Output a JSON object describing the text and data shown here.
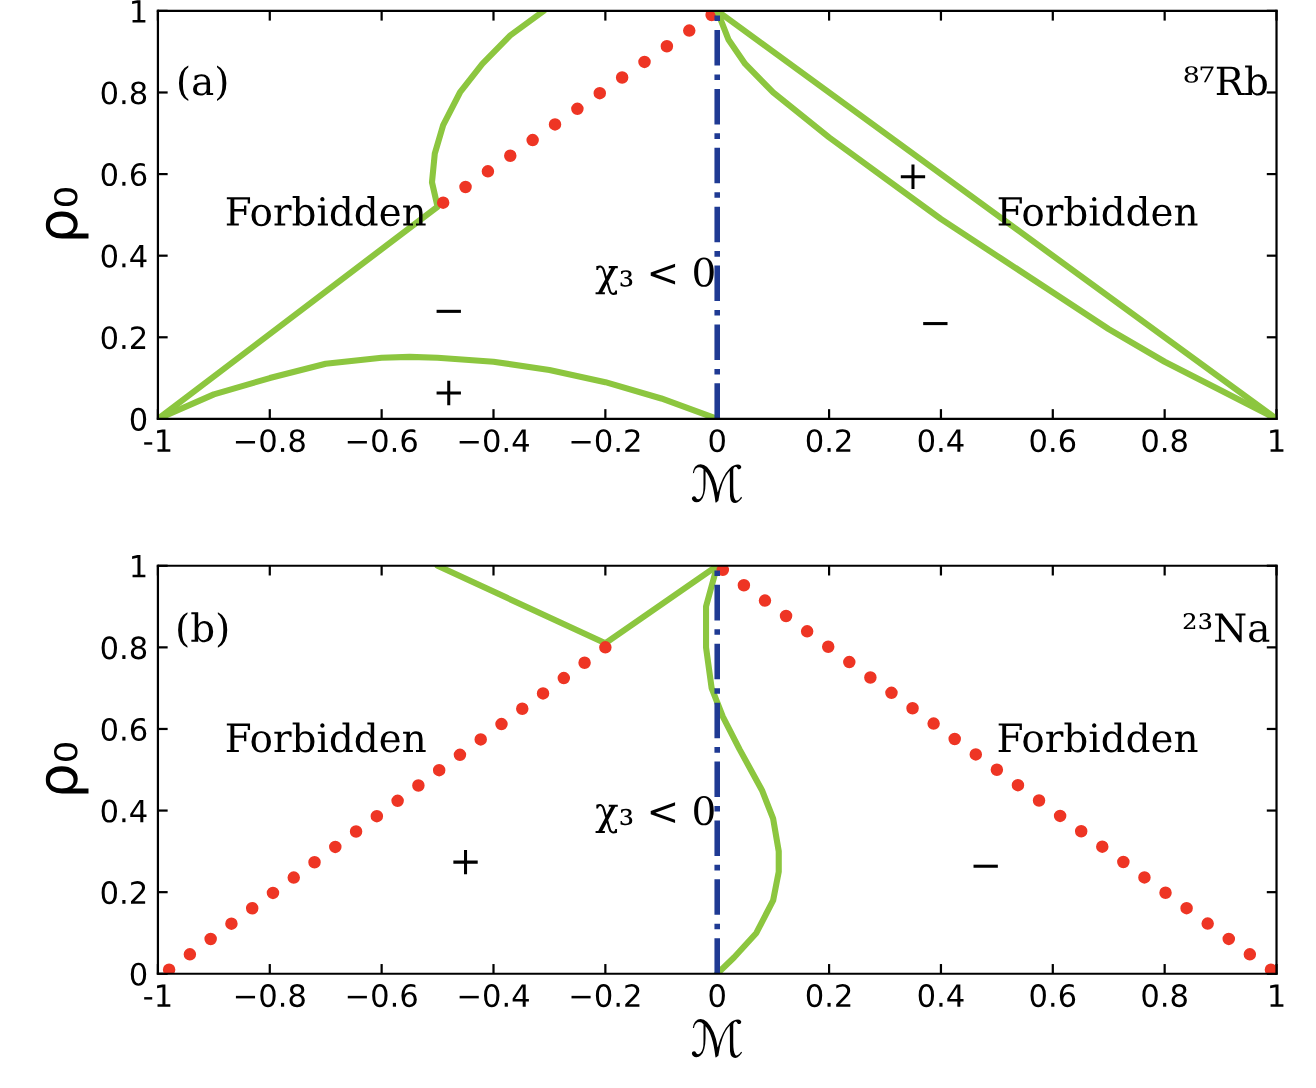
{
  "chart_data": [
    {
      "type": "line",
      "xlabel": "ℳ",
      "ylabel": "ρ₀",
      "xlim": [
        -1,
        1
      ],
      "ylim": [
        0,
        1
      ],
      "xticks": [
        -1,
        {
          "value": -0.8,
          "label": "−0.8"
        },
        {
          "value": -0.6,
          "label": "−0.6"
        },
        {
          "value": -0.4,
          "label": "−0.4"
        },
        {
          "value": -0.2,
          "label": "−0.2"
        },
        0,
        0.2,
        0.4,
        0.6,
        0.8,
        1
      ],
      "yticks": [
        0,
        0.2,
        0.4,
        0.6,
        0.8,
        1
      ],
      "grid": false,
      "legend": false,
      "marker": "none",
      "series": [
        {
          "color": "#8cc63f",
          "line_style": "solid",
          "x": [
            -1,
            -0.5,
            -0.51,
            -0.505,
            -0.49,
            -0.46,
            -0.42,
            -0.37,
            -0.31
          ],
          "values": [
            0,
            0.52,
            0.58,
            0.65,
            0.72,
            0.8,
            0.87,
            0.94,
            1.0
          ]
        },
        {
          "color": "#8cc63f",
          "line_style": "solid",
          "x": [
            -1,
            -0.9,
            -0.8,
            -0.7,
            -0.6,
            -0.55,
            -0.5,
            -0.4,
            -0.3,
            -0.2,
            -0.1,
            0
          ],
          "values": [
            0,
            0.06,
            0.1,
            0.135,
            0.15,
            0.152,
            0.15,
            0.14,
            0.12,
            0.09,
            0.05,
            0
          ]
        },
        {
          "color": "#ee3524",
          "line_style": "dotted",
          "x": [
            -0.49,
            -0.01
          ],
          "values": [
            0.53,
            0.99
          ]
        },
        {
          "color": "#8cc63f",
          "line_style": "solid",
          "x": [
            0,
            1
          ],
          "values": [
            1,
            0
          ]
        },
        {
          "color": "#8cc63f",
          "line_style": "solid",
          "x": [
            0,
            0.02,
            0.05,
            0.1,
            0.2,
            0.3,
            0.4,
            0.5,
            0.6,
            0.7,
            0.8,
            0.9,
            1
          ],
          "values": [
            1,
            0.93,
            0.87,
            0.8,
            0.69,
            0.59,
            0.49,
            0.4,
            0.31,
            0.22,
            0.14,
            0.07,
            0
          ]
        }
      ],
      "ref_lines": [
        {
          "axis": "x",
          "value": 0,
          "color": "#1f3a93",
          "line_style": "dashdot"
        }
      ],
      "annotations": [
        "(a)",
        "⁸⁷Rb",
        "Forbidden",
        "Forbidden",
        "χ₃ < 0",
        "−",
        "+",
        "+",
        "−"
      ]
    },
    {
      "type": "line",
      "xlabel": "ℳ",
      "ylabel": "ρ₀",
      "xlim": [
        -1,
        1
      ],
      "ylim": [
        0,
        1
      ],
      "xticks": [
        -1,
        {
          "value": -0.8,
          "label": "−0.8"
        },
        {
          "value": -0.6,
          "label": "−0.6"
        },
        {
          "value": -0.4,
          "label": "−0.4"
        },
        {
          "value": -0.2,
          "label": "−0.2"
        },
        0,
        0.2,
        0.4,
        0.6,
        0.8,
        1
      ],
      "yticks": [
        0,
        0.2,
        0.4,
        0.6,
        0.8,
        1
      ],
      "grid": false,
      "legend": false,
      "marker": "none",
      "series": [
        {
          "color": "#8cc63f",
          "line_style": "solid",
          "x": [
            -0.5,
            -0.2,
            0
          ],
          "values": [
            1,
            0.81,
            1
          ]
        },
        {
          "color": "#8cc63f",
          "line_style": "solid",
          "x": [
            0,
            -0.02,
            -0.02,
            -0.01,
            0.01,
            0.04,
            0.08,
            0.1,
            0.11,
            0.11,
            0.1,
            0.07,
            0.03,
            0
          ],
          "values": [
            1,
            0.9,
            0.8,
            0.7,
            0.63,
            0.55,
            0.45,
            0.38,
            0.3,
            0.25,
            0.18,
            0.1,
            0.04,
            0
          ]
        },
        {
          "color": "#ee3524",
          "line_style": "dotted",
          "x": [
            -0.98,
            -0.2
          ],
          "values": [
            0.01,
            0.8
          ]
        },
        {
          "color": "#ee3524",
          "line_style": "dotted",
          "x": [
            0.01,
            0.99
          ],
          "values": [
            0.99,
            0.01
          ]
        }
      ],
      "ref_lines": [
        {
          "axis": "x",
          "value": 0,
          "color": "#1f3a93",
          "line_style": "dashdot"
        }
      ],
      "annotations": [
        "(b)",
        "²³Na",
        "Forbidden",
        "Forbidden",
        "χ₃ < 0",
        "+",
        "−"
      ]
    }
  ]
}
